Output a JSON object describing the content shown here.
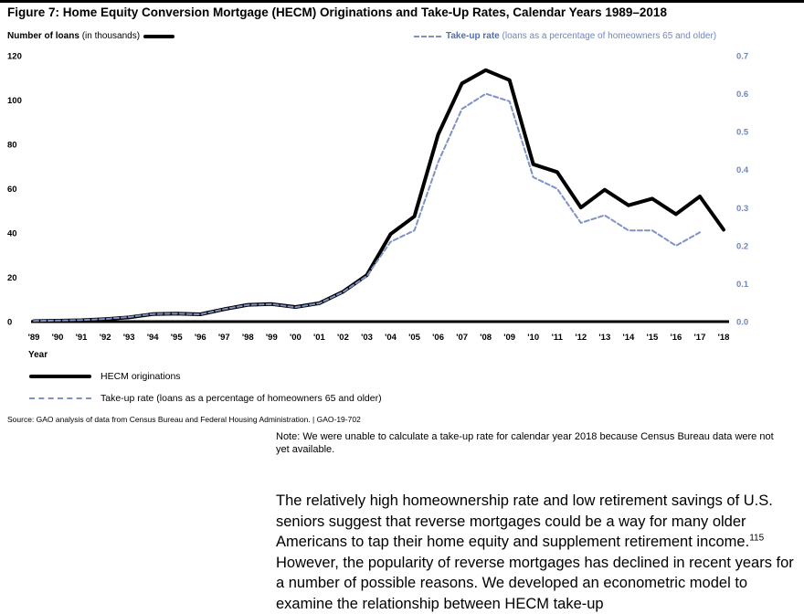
{
  "figure": {
    "title": "Figure 7: Home Equity Conversion Mortgage (HECM) Originations and Take-Up Rates, Calendar Years 1989–2018",
    "left_axis_title": "Number of loans",
    "left_axis_unit": "(in thousands)",
    "right_axis_title": "Take-up rate",
    "right_axis_unit": "(loans as a percentage of homeowners 65 and older)",
    "legend": [
      {
        "label": "HECM originations"
      },
      {
        "label": "Take-up rate (loans as a percentage of homeowners 65 and older)"
      }
    ],
    "source": "Source: GAO analysis of data from Census Bureau and Federal Housing Administration.  |  GAO-19-702"
  },
  "note": "Note: We were unable to calculate a take-up rate for calendar year 2018 because Census Bureau data were not yet available.",
  "body": {
    "part1": "The relatively high homeownership rate and low retirement savings of U.S. seniors suggest that reverse mortgages could be a way for many older Americans to tap their home equity and supplement retirement income.",
    "footnote_ref": "115",
    "part2": " However, the popularity of reverse mortgages has declined in recent years for a number of possible reasons. We developed an econometric model to examine the relationship between HECM take-up"
  },
  "colors": {
    "originations": "#000000",
    "take_up": "#7f92c6"
  },
  "chart_data": {
    "type": "line",
    "x": [
      "'89",
      "'90",
      "'91",
      "'92",
      "'93",
      "'94",
      "'95",
      "'96",
      "'97",
      "'98",
      "'99",
      "'00",
      "'01",
      "'02",
      "'03",
      "'04",
      "'05",
      "'06",
      "'07",
      "'08",
      "'09",
      "'10",
      "'11",
      "'12",
      "'13",
      "'14",
      "'15",
      "'16",
      "'17",
      "'18"
    ],
    "xlabel": "Year",
    "y_left": {
      "label": "Number of loans",
      "ylim": [
        0,
        120
      ],
      "ticks": [
        0,
        20,
        40,
        60,
        80,
        100,
        120
      ]
    },
    "y_right": {
      "label": "Take-up rate",
      "ylim": [
        0,
        0.7
      ],
      "ticks": [
        "0.0",
        "0.1",
        "0.2",
        "0.3",
        "0.4",
        "0.5",
        "0.6",
        "0.7"
      ]
    },
    "series": [
      {
        "name": "HECM originations",
        "axis": "left",
        "values": [
          0.2,
          0.4,
          0.6,
          1.1,
          1.9,
          3.4,
          3.6,
          3.3,
          5.6,
          7.6,
          7.9,
          6.6,
          8.3,
          13.5,
          21.0,
          39.5,
          47.5,
          84.5,
          107.5,
          113.5,
          109.0,
          71.0,
          67.5,
          51.5,
          59.5,
          52.5,
          55.5,
          48.5,
          56.5,
          41.5
        ]
      },
      {
        "name": "Take-up rate (loans as a percentage of homeowners 65 and older)",
        "axis": "right",
        "values": [
          0.002,
          0.003,
          0.004,
          0.007,
          0.012,
          0.02,
          0.021,
          0.019,
          0.033,
          0.044,
          0.046,
          0.038,
          0.048,
          0.078,
          0.12,
          0.21,
          0.24,
          0.42,
          0.56,
          0.6,
          0.58,
          0.38,
          0.35,
          0.26,
          0.28,
          0.24,
          0.24,
          0.2,
          0.235,
          null
        ]
      }
    ]
  }
}
